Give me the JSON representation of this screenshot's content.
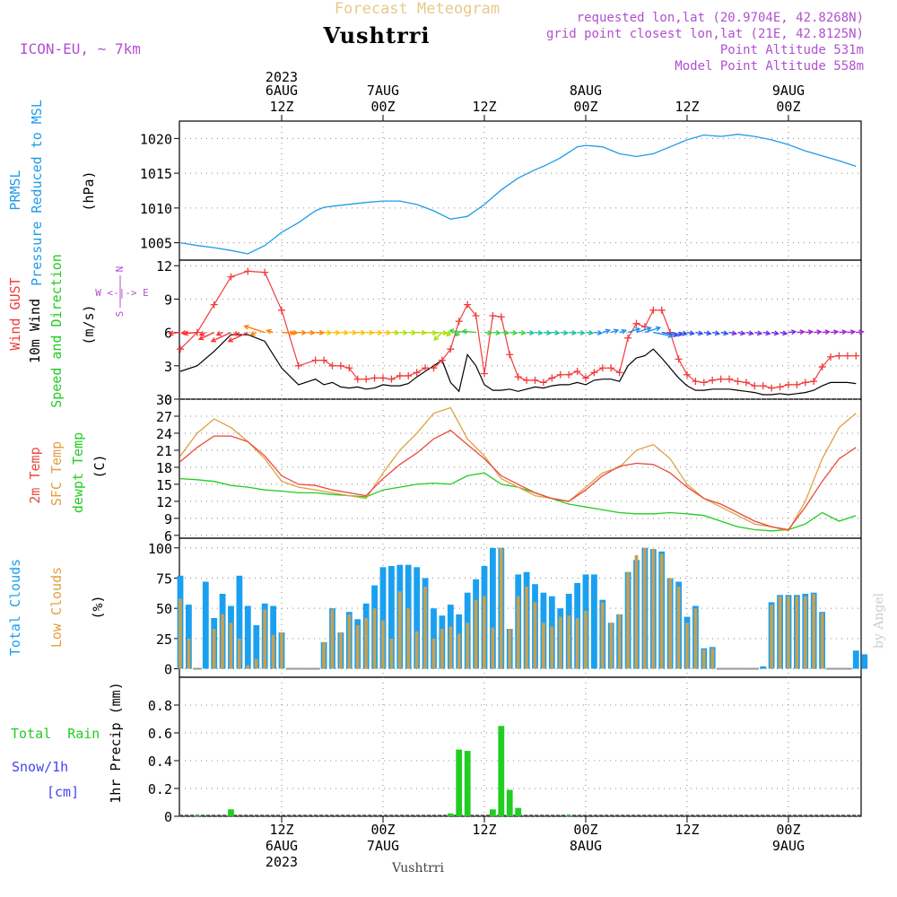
{
  "header": {
    "title": "Forecast Meteogram",
    "location": "Vushtrri",
    "model": "ICON-EU, ~ 7km",
    "info": [
      "requested lon,lat (20.9704E, 42.8268N)",
      "grid point closest lon,lat (21E, 42.8125N)",
      "Point Altitude 531m",
      "Model Point Altitude 558m"
    ]
  },
  "footer": {
    "location": "Vushtrri",
    "credit": "by Angel"
  },
  "time_axis": {
    "top_year": "2023",
    "ticks": [
      {
        "h": 12,
        "top": [
          "6AUG",
          "12Z"
        ],
        "bottom": [
          "12Z",
          "6AUG",
          "2023"
        ]
      },
      {
        "h": 24,
        "top": [
          "7AUG",
          "00Z"
        ],
        "bottom": [
          "00Z",
          "7AUG"
        ]
      },
      {
        "h": 36,
        "top": [
          "12Z"
        ],
        "bottom": [
          "12Z"
        ]
      },
      {
        "h": 48,
        "top": [
          "8AUG",
          "00Z"
        ],
        "bottom": [
          "00Z",
          "8AUG"
        ]
      },
      {
        "h": 60,
        "top": [
          "12Z"
        ],
        "bottom": [
          "12Z"
        ]
      },
      {
        "h": 72,
        "top": [
          "9AUG",
          "00Z"
        ],
        "bottom": [
          "00Z",
          "9AUG"
        ]
      }
    ]
  },
  "colors": {
    "pressure": "#1e9bea",
    "gust": "#f03c3c",
    "wind": "#000000",
    "t2m": "#e84a3c",
    "sfc": "#e0a040",
    "dew": "#22cc22",
    "total_clouds": "#1aa0f0",
    "low_clouds": "#c8a050",
    "rain": "#22cc22",
    "snow": "#4444ee"
  },
  "chart_data": [
    {
      "type": "line",
      "ylabel_lines": [
        "PRMSL",
        "Pressure Reduced to MSL"
      ],
      "unit": "(hPa)",
      "ylim": [
        1002.5,
        1022.5
      ],
      "yticks": [
        1005,
        1010,
        1015,
        1020
      ],
      "x_hours": [
        0,
        2,
        4,
        6,
        8,
        10,
        12,
        14,
        16,
        17,
        19,
        22,
        24,
        26,
        28,
        30,
        32,
        34,
        36,
        38,
        40,
        42,
        43,
        45,
        47,
        48,
        50,
        52,
        54,
        56,
        58,
        60,
        62,
        64,
        66,
        68,
        70,
        72,
        74,
        76,
        78,
        80
      ],
      "series": [
        {
          "name": "PRMSL",
          "values": [
            1005,
            1004.6,
            1004.3,
            1003.9,
            1003.4,
            1004.6,
            1006.5,
            1007.9,
            1009.6,
            1010.1,
            1010.4,
            1010.8,
            1011,
            1011,
            1010.5,
            1009.6,
            1008.4,
            1008.8,
            1010.5,
            1012.6,
            1014.3,
            1015.5,
            1016,
            1017.2,
            1018.8,
            1019,
            1018.8,
            1017.8,
            1017.4,
            1017.8,
            1018.8,
            1019.8,
            1020.5,
            1020.3,
            1020.6,
            1020.3,
            1019.8,
            1019.1,
            1018.2,
            1017.5,
            1016.8,
            1016
          ]
        }
      ]
    },
    {
      "type": "line",
      "ylabel_lines": [
        "Wind GUST",
        "10m Wind",
        "Speed and Direction"
      ],
      "unit": "(m/s)",
      "compass": [
        "N",
        "W <-|-> E",
        "S"
      ],
      "ylim": [
        0,
        12.5
      ],
      "yticks": [
        0,
        3,
        6,
        9,
        12
      ],
      "x_hours": [
        0,
        2,
        4,
        6,
        8,
        10,
        12,
        14,
        16,
        17,
        18,
        19,
        20,
        21,
        22,
        23,
        24,
        25,
        26,
        27,
        28,
        29,
        30,
        31,
        32,
        33,
        34,
        35,
        36,
        37,
        38,
        39,
        40,
        41,
        42,
        43,
        44,
        45,
        46,
        47,
        48,
        49,
        50,
        51,
        52,
        53,
        54,
        55,
        56,
        57,
        58,
        59,
        60,
        61,
        62,
        63,
        64,
        65,
        66,
        67,
        68,
        69,
        70,
        71,
        72,
        73,
        74,
        75,
        76,
        77,
        78,
        79,
        80
      ],
      "series": [
        {
          "name": "Wind GUST",
          "values": [
            4.5,
            6,
            8.5,
            11,
            11.5,
            11.4,
            8,
            3,
            3.5,
            3.5,
            3,
            3,
            2.8,
            1.8,
            1.8,
            1.9,
            1.9,
            1.8,
            2.1,
            2.1,
            2.4,
            2.8,
            2.8,
            3.5,
            4.5,
            7,
            8.5,
            7.5,
            2.3,
            7.5,
            7.4,
            4,
            2,
            1.7,
            1.7,
            1.5,
            1.9,
            2.2,
            2.2,
            2.5,
            1.9,
            2.4,
            2.8,
            2.8,
            2.4,
            5.5,
            6.8,
            6.5,
            8,
            8,
            6,
            3.6,
            2.2,
            1.6,
            1.5,
            1.7,
            1.8,
            1.8,
            1.6,
            1.5,
            1.2,
            1.2,
            1,
            1.1,
            1.3,
            1.3,
            1.5,
            1.6,
            2.9,
            3.8,
            3.9,
            3.9,
            3.9
          ]
        },
        {
          "name": "10m Wind",
          "values": [
            2.5,
            3,
            4.3,
            5.8,
            5.8,
            5.2,
            2.8,
            1.3,
            1.8,
            1.3,
            1.5,
            1.1,
            1,
            1.1,
            0.9,
            1,
            1.3,
            1.2,
            1.2,
            1.4,
            2,
            2.5,
            3,
            3.5,
            1.5,
            0.7,
            4,
            3,
            1.3,
            0.8,
            0.8,
            0.9,
            0.7,
            0.9,
            1.1,
            1,
            1.2,
            1.3,
            1.3,
            1.5,
            1.3,
            1.7,
            1.8,
            1.8,
            1.6,
            3,
            3.7,
            3.9,
            4.5,
            3.7,
            2.8,
            1.9,
            1.2,
            0.8,
            0.8,
            0.9,
            0.9,
            0.9,
            0.8,
            0.7,
            0.6,
            0.4,
            0.4,
            0.5,
            0.4,
            0.5,
            0.6,
            0.8,
            1.2,
            1.5,
            1.5,
            1.5,
            1.4
          ]
        }
      ],
      "arrows_dir": [
        {
          "h_from": 0,
          "h_to": 3,
          "deg": 260
        },
        {
          "h_from": 3,
          "h_to": 10,
          "deg": 230
        },
        {
          "h_from": 10,
          "h_to": 12,
          "deg": 300
        },
        {
          "h_from": 12,
          "h_to": 31,
          "deg": 95
        },
        {
          "h_from": 31,
          "h_to": 34,
          "deg": 210
        },
        {
          "h_from": 34,
          "h_to": 36,
          "deg": 280
        },
        {
          "h_from": 36,
          "h_to": 50,
          "deg": 100
        },
        {
          "h_from": 50,
          "h_to": 56,
          "deg": 60
        },
        {
          "h_from": 56,
          "h_to": 72,
          "deg": 110
        },
        {
          "h_from": 72,
          "h_to": 81,
          "deg": 80
        }
      ]
    },
    {
      "type": "line",
      "ylabel_lines": [
        "2m Temp",
        "SFC Temp",
        "dewpt Temp"
      ],
      "unit": "(C)",
      "ylim": [
        5.5,
        30
      ],
      "yticks": [
        6,
        9,
        12,
        15,
        18,
        21,
        24,
        27,
        30
      ],
      "x_hours": [
        0,
        2,
        4,
        6,
        8,
        10,
        12,
        14,
        16,
        18,
        20,
        22,
        24,
        26,
        28,
        30,
        32,
        34,
        36,
        38,
        40,
        42,
        44,
        46,
        48,
        50,
        52,
        54,
        56,
        58,
        60,
        62,
        64,
        66,
        68,
        70,
        72,
        74,
        76,
        78,
        80
      ],
      "series": [
        {
          "name": "2m Temp",
          "values": [
            19,
            21.5,
            23.5,
            23.5,
            22.5,
            20,
            16.5,
            15,
            14.8,
            14,
            13.5,
            13,
            16,
            18.5,
            20.5,
            23,
            24.5,
            22,
            19.5,
            16.5,
            15,
            13.5,
            12.5,
            12,
            14,
            16.5,
            18.2,
            18.7,
            18.5,
            17,
            14.5,
            12.5,
            11.5,
            10,
            8.5,
            7.5,
            7,
            11,
            15.5,
            19.5,
            21.5
          ]
        },
        {
          "name": "SFC Temp",
          "values": [
            20,
            24,
            26.5,
            25,
            22.5,
            19.5,
            15.5,
            14.5,
            14,
            13.5,
            13,
            12.5,
            17,
            21,
            24,
            27.5,
            28.5,
            23,
            20,
            16,
            14.5,
            13,
            12.5,
            12,
            14.5,
            17,
            18,
            21,
            22,
            19.5,
            15,
            12.5,
            11,
            9.5,
            8,
            7.5,
            6.8,
            12,
            19.5,
            25,
            27.5
          ]
        },
        {
          "name": "dewpt Temp",
          "values": [
            16,
            15.8,
            15.5,
            14.8,
            14.5,
            14,
            13.8,
            13.5,
            13.5,
            13.2,
            13,
            12.8,
            14,
            14.5,
            15,
            15.2,
            15,
            16.5,
            17,
            15,
            14.5,
            13.5,
            12.5,
            11.5,
            11,
            10.5,
            10,
            9.8,
            9.8,
            10,
            9.8,
            9.5,
            8.5,
            7.5,
            7,
            6.8,
            7,
            8,
            10,
            8.5,
            9.5
          ]
        }
      ]
    },
    {
      "type": "bar",
      "ylabel_lines": [
        "Total Clouds",
        "Low Clouds"
      ],
      "unit": "(%)",
      "ylim": [
        -7,
        108
      ],
      "yticks": [
        0,
        25,
        50,
        75,
        100
      ],
      "start_hour": 0,
      "series": [
        {
          "name": "Total Clouds",
          "values": [
            77,
            53,
            0,
            72,
            42,
            62,
            52,
            77,
            52,
            36,
            54,
            52,
            30,
            0,
            0,
            0,
            0,
            22,
            50,
            30,
            47,
            41,
            54,
            69,
            84,
            85,
            86,
            86,
            84,
            75,
            50,
            44,
            53,
            45,
            63,
            74,
            85,
            100,
            100,
            33,
            78,
            80,
            70,
            63,
            60,
            50,
            62,
            71,
            78,
            78,
            57,
            38,
            45,
            80,
            90,
            100,
            99,
            97,
            75,
            72,
            43,
            52,
            17,
            18,
            0,
            0,
            0,
            0,
            0,
            2,
            55,
            61,
            61,
            61,
            62,
            63,
            47,
            0,
            0,
            0,
            15,
            12
          ]
        },
        {
          "name": "Low Clouds",
          "values": [
            58,
            25,
            0,
            0,
            33,
            45,
            38,
            25,
            3,
            8,
            49,
            28,
            30,
            0,
            0,
            0,
            0,
            22,
            49,
            30,
            45,
            36,
            42,
            50,
            40,
            25,
            64,
            50,
            31,
            68,
            25,
            33,
            35,
            29,
            38,
            57,
            60,
            34,
            100,
            33,
            60,
            68,
            55,
            38,
            35,
            43,
            44,
            42,
            48,
            0,
            55,
            38,
            45,
            80,
            94,
            100,
            99,
            95,
            75,
            68,
            38,
            50,
            16,
            17,
            0,
            0,
            0,
            0,
            0,
            0,
            53,
            60,
            60,
            60,
            60,
            62,
            46,
            0,
            0,
            0,
            0,
            0
          ]
        }
      ]
    },
    {
      "type": "bar",
      "ylabel_lines": [
        "1hr Precip (mm)"
      ],
      "side_labels": [
        "Total  Rain",
        "Snow/1h",
        "[cm]"
      ],
      "ylim": [
        0,
        1.0
      ],
      "yticks": [
        0,
        0.2,
        0.4,
        0.6,
        0.8
      ],
      "series": [
        {
          "name": "Total Rain",
          "x_hours": [
            2,
            6,
            32,
            33,
            34,
            37,
            38,
            39,
            40,
            46
          ],
          "values": [
            0.005,
            0.05,
            0.02,
            0.48,
            0.47,
            0.05,
            0.65,
            0.19,
            0.06,
            0.005
          ]
        }
      ]
    }
  ]
}
